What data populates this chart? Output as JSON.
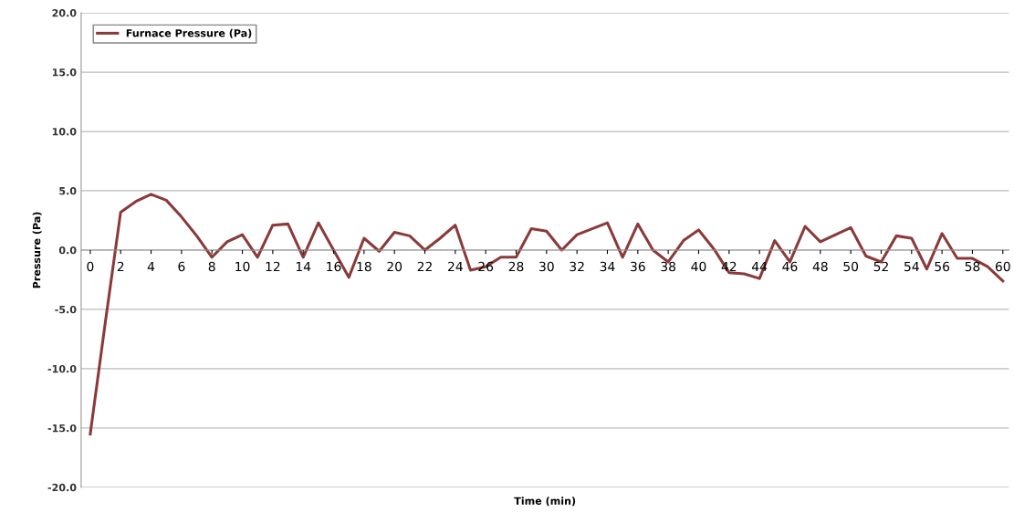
{
  "chart_data": {
    "type": "line",
    "xlabel": "Time (min)",
    "ylabel": "Pressure (Pa)",
    "x": [
      0,
      1,
      2,
      3,
      4,
      5,
      6,
      7,
      8,
      9,
      10,
      11,
      12,
      13,
      14,
      15,
      16,
      17,
      18,
      19,
      20,
      21,
      22,
      23,
      24,
      25,
      26,
      27,
      28,
      29,
      30,
      31,
      32,
      33,
      34,
      35,
      36,
      37,
      38,
      39,
      40,
      41,
      42,
      43,
      44,
      45,
      46,
      47,
      48,
      49,
      50,
      51,
      52,
      53,
      54,
      55,
      56,
      57,
      58,
      59,
      60
    ],
    "series": [
      {
        "name": "Furnace Pressure (Pa)",
        "color": "#8b3a3a",
        "values": [
          -15.5,
          -6.0,
          3.2,
          4.1,
          4.7,
          4.2,
          2.8,
          1.2,
          -0.6,
          0.7,
          1.3,
          -0.6,
          2.1,
          2.2,
          -0.6,
          2.3,
          0.0,
          -2.3,
          1.0,
          -0.1,
          1.5,
          1.2,
          0.0,
          1.0,
          2.1,
          -1.7,
          -1.4,
          -0.6,
          -0.6,
          1.8,
          1.6,
          0.0,
          1.3,
          1.8,
          2.3,
          -0.6,
          2.2,
          0.0,
          -1.0,
          0.8,
          1.7,
          0.1,
          -1.9,
          -2.0,
          -2.4,
          0.8,
          -1.0,
          2.0,
          0.7,
          1.3,
          1.9,
          -0.5,
          -1.0,
          1.2,
          1.0,
          -1.6,
          1.4,
          -0.7,
          -0.7,
          -1.4,
          -2.6
        ]
      }
    ],
    "xlim": [
      -0.6,
      60.4
    ],
    "xticks": [
      0,
      2,
      4,
      6,
      8,
      10,
      12,
      14,
      16,
      18,
      20,
      22,
      24,
      26,
      28,
      30,
      32,
      34,
      36,
      38,
      40,
      42,
      44,
      46,
      48,
      50,
      52,
      54,
      56,
      58,
      60
    ],
    "ylim": [
      -20,
      20
    ],
    "yticks": [
      {
        "value": -20,
        "label": "-20.0"
      },
      {
        "value": -15,
        "label": "-15.0"
      },
      {
        "value": -10,
        "label": "-10.0"
      },
      {
        "value": -5,
        "label": "-5.0"
      },
      {
        "value": 0,
        "label": "0.0"
      },
      {
        "value": 5,
        "label": "5.0"
      },
      {
        "value": 10,
        "label": "10.0"
      },
      {
        "value": 15,
        "label": "15.0"
      },
      {
        "value": 20,
        "label": "20.0"
      }
    ],
    "grid": "y",
    "legend": "top left",
    "marker": "none",
    "line_style": "solid"
  }
}
